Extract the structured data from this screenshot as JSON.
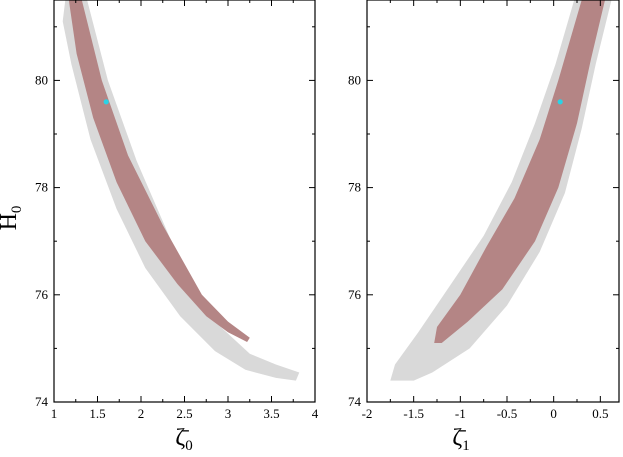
{
  "chart_data": [
    {
      "type": "scatter",
      "panel": "left",
      "xlabel": "ζ̄0",
      "ylabel": "H0",
      "xlim": [
        1.0,
        4.0
      ],
      "ylim": [
        74.0,
        81.5
      ],
      "xticks": [
        1,
        1.5,
        2,
        2.5,
        3,
        3.5,
        4
      ],
      "xtick_labels": [
        "1",
        "1.5",
        "2",
        "2.5",
        "3",
        "3.5",
        "4"
      ],
      "yticks": [
        74,
        76,
        78,
        80
      ],
      "ytick_labels": [
        "74",
        "76",
        "78",
        "80"
      ],
      "grid": false,
      "colors": {
        "outer": "#d9d9d9",
        "inner": "#b48585",
        "best_fit": "#29d3e6"
      },
      "regions": [
        {
          "level": "outer",
          "polygon": [
            [
              1.13,
              81.5
            ],
            [
              1.38,
              81.5
            ],
            [
              1.62,
              80.0
            ],
            [
              1.95,
              78.5
            ],
            [
              2.35,
              77.0
            ],
            [
              2.85,
              75.5
            ],
            [
              3.25,
              74.9
            ],
            [
              3.55,
              74.7
            ],
            [
              3.82,
              74.55
            ],
            [
              3.78,
              74.4
            ],
            [
              3.55,
              74.45
            ],
            [
              3.2,
              74.6
            ],
            [
              2.85,
              74.95
            ],
            [
              2.45,
              75.6
            ],
            [
              2.05,
              76.5
            ],
            [
              1.72,
              77.6
            ],
            [
              1.42,
              78.9
            ],
            [
              1.2,
              80.3
            ],
            [
              1.1,
              81.1
            ]
          ]
        },
        {
          "level": "inner",
          "polygon": [
            [
              1.17,
              81.5
            ],
            [
              1.32,
              81.5
            ],
            [
              1.55,
              80.0
            ],
            [
              1.85,
              78.6
            ],
            [
              2.25,
              77.3
            ],
            [
              2.7,
              76.0
            ],
            [
              3.0,
              75.5
            ],
            [
              3.25,
              75.2
            ],
            [
              3.22,
              75.12
            ],
            [
              3.0,
              75.3
            ],
            [
              2.75,
              75.6
            ],
            [
              2.42,
              76.2
            ],
            [
              2.05,
              77.0
            ],
            [
              1.72,
              78.1
            ],
            [
              1.45,
              79.3
            ],
            [
              1.26,
              80.5
            ]
          ]
        }
      ],
      "best_fit": {
        "x": 1.6,
        "y": 79.6
      }
    },
    {
      "type": "scatter",
      "panel": "right",
      "xlabel": "ζ̄1",
      "ylabel": "",
      "xlim": [
        -2.0,
        0.7
      ],
      "ylim": [
        74.0,
        81.5
      ],
      "xticks": [
        -2,
        -1.5,
        -1,
        -0.5,
        0,
        0.5
      ],
      "xtick_labels": [
        "-2",
        "-1.5",
        "-1",
        "-0.5",
        "0",
        "0.5"
      ],
      "yticks": [
        74,
        76,
        78,
        80
      ],
      "ytick_labels": [
        "74",
        "76",
        "78",
        "80"
      ],
      "grid": false,
      "colors": {
        "outer": "#d9d9d9",
        "inner": "#b48585",
        "best_fit": "#29d3e6"
      },
      "regions": [
        {
          "level": "outer",
          "polygon": [
            [
              -1.75,
              74.4
            ],
            [
              -1.7,
              74.7
            ],
            [
              -1.45,
              75.3
            ],
            [
              -1.1,
              76.2
            ],
            [
              -0.75,
              77.1
            ],
            [
              -0.45,
              78.1
            ],
            [
              -0.2,
              79.2
            ],
            [
              0.02,
              80.3
            ],
            [
              0.22,
              81.5
            ],
            [
              0.62,
              81.5
            ],
            [
              0.45,
              80.3
            ],
            [
              0.3,
              79.1
            ],
            [
              0.12,
              77.9
            ],
            [
              -0.15,
              76.8
            ],
            [
              -0.5,
              75.8
            ],
            [
              -0.9,
              75.0
            ],
            [
              -1.3,
              74.55
            ],
            [
              -1.5,
              74.4
            ]
          ]
        },
        {
          "level": "inner",
          "polygon": [
            [
              -1.28,
              75.1
            ],
            [
              -1.25,
              75.4
            ],
            [
              -1.0,
              76.0
            ],
            [
              -0.72,
              76.9
            ],
            [
              -0.42,
              77.8
            ],
            [
              -0.15,
              78.9
            ],
            [
              0.05,
              80.0
            ],
            [
              0.3,
              81.5
            ],
            [
              0.55,
              81.5
            ],
            [
              0.4,
              80.4
            ],
            [
              0.25,
              79.2
            ],
            [
              0.05,
              78.0
            ],
            [
              -0.2,
              77.0
            ],
            [
              -0.55,
              76.1
            ],
            [
              -0.92,
              75.5
            ],
            [
              -1.2,
              75.1
            ]
          ]
        }
      ],
      "best_fit": {
        "x": 0.07,
        "y": 79.6
      }
    }
  ]
}
